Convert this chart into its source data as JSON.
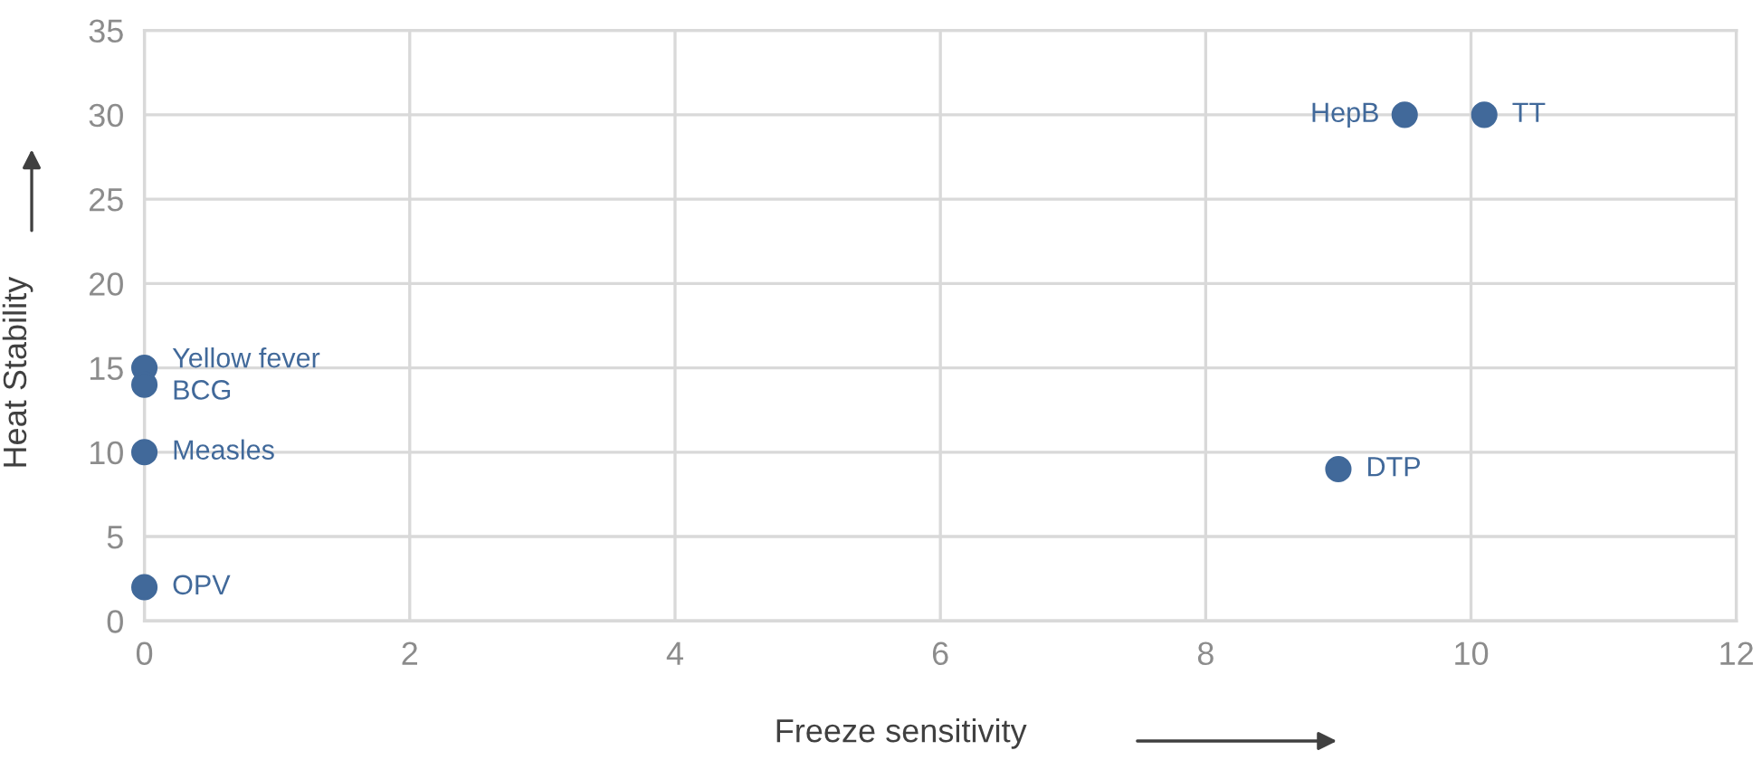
{
  "chart_data": {
    "type": "scatter",
    "xlabel": "Freeze sensitivity",
    "ylabel": "Heat Stability",
    "x": [
      0,
      0,
      0,
      0,
      9.5,
      10.1,
      9.0
    ],
    "values": [
      15,
      14,
      10,
      2,
      30,
      30,
      9
    ],
    "color": "#41699a",
    "marker": "circle",
    "xlim": [
      0,
      12
    ],
    "xticks": [
      0,
      2,
      4,
      6,
      8,
      10,
      12
    ],
    "ylim": [
      0,
      35
    ],
    "yticks": [
      0,
      5,
      10,
      15,
      20,
      25,
      30,
      35
    ],
    "grid": true,
    "legend": false,
    "annotations": [
      {
        "text": "Yellow fever",
        "x": 0,
        "y": 15
      },
      {
        "text": "BCG",
        "x": 0,
        "y": 14
      },
      {
        "text": "Measles",
        "x": 0,
        "y": 10
      },
      {
        "text": "OPV",
        "x": 0,
        "y": 2
      },
      {
        "text": "HepB",
        "x": 9.5,
        "y": 30
      },
      {
        "text": "TT",
        "x": 10.1,
        "y": 30
      },
      {
        "text": "DTP",
        "x": 9.0,
        "y": 9
      }
    ]
  }
}
